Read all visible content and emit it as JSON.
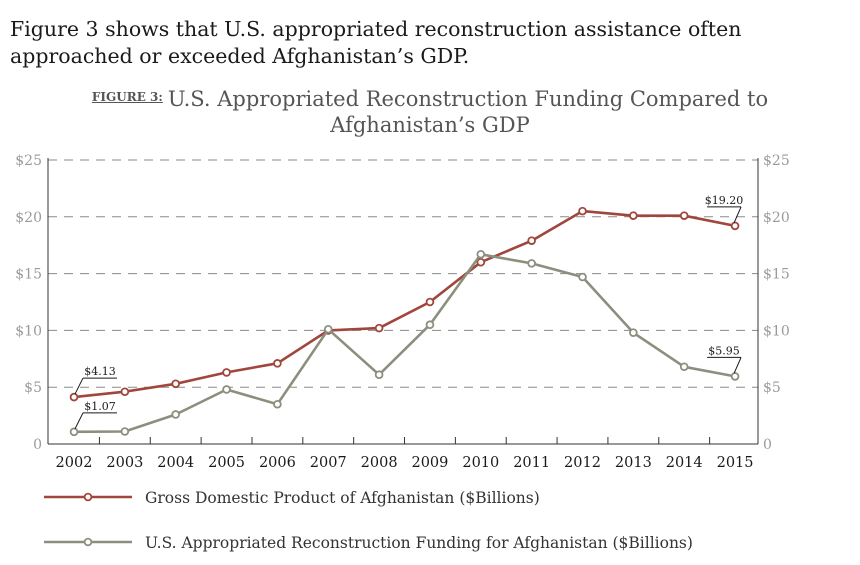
{
  "intro_text": "Figure 3 shows that U.S. appropriated reconstruction assistance often approached or exceeded Afghanistan’s GDP.",
  "figure_label": "FIGURE 3:",
  "figure_title_line1": "U.S. Appropriated Reconstruction Funding Compared to",
  "figure_title_line2": "Afghanistan’s GDP",
  "chart_data": {
    "type": "line",
    "title": "U.S. Appropriated Reconstruction Funding Compared to Afghanistan’s GDP",
    "xlabel": "",
    "ylabel": "",
    "x": [
      "2002",
      "2003",
      "2004",
      "2005",
      "2006",
      "2007",
      "2008",
      "2009",
      "2010",
      "2011",
      "2012",
      "2013",
      "2014",
      "2015"
    ],
    "ylim": [
      0,
      25
    ],
    "yticks_left": [
      "0",
      "$5",
      "$10",
      "$15",
      "$20",
      "$25"
    ],
    "yticks_right": [
      "0",
      "$5",
      "$10",
      "$15",
      "$20",
      "$25"
    ],
    "grid": "dashed horizontal",
    "legend_position": "bottom",
    "series": [
      {
        "name": "Gross Domestic Product of Afghanistan ($Billions)",
        "color": "#a0463c",
        "values": [
          4.13,
          4.6,
          5.3,
          6.3,
          7.1,
          10.0,
          10.2,
          12.5,
          16.0,
          17.9,
          20.5,
          20.1,
          20.1,
          19.2
        ]
      },
      {
        "name": "U.S. Appropriated Reconstruction Funding for Afghanistan ($Billions)",
        "color": "#8c8f7e",
        "values": [
          1.07,
          1.1,
          2.6,
          4.8,
          3.5,
          10.1,
          6.1,
          10.5,
          16.7,
          15.9,
          14.7,
          9.8,
          6.8,
          5.95
        ]
      }
    ],
    "annotations": [
      {
        "series": 0,
        "index": 0,
        "text": "$4.13"
      },
      {
        "series": 0,
        "index": 13,
        "text": "$19.20"
      },
      {
        "series": 1,
        "index": 0,
        "text": "$1.07"
      },
      {
        "series": 1,
        "index": 13,
        "text": "$5.95"
      }
    ]
  }
}
